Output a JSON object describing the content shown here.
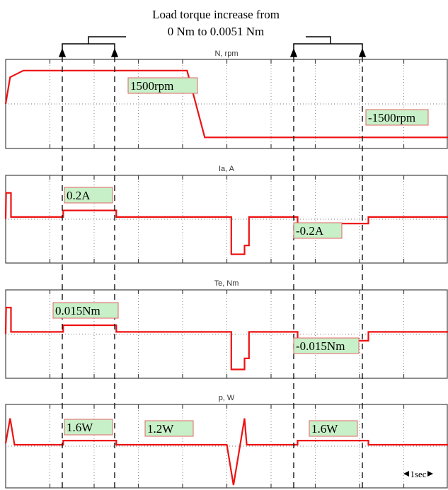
{
  "annotation": {
    "line1": "Load torque increase from",
    "line2": "0 Nm to 0.0051 Nm"
  },
  "time_scale_label": "1sec",
  "colors": {
    "trace": "#ee1111",
    "label_bg": "#c8f0c8",
    "label_border": "#e06666",
    "grid": "#444444"
  },
  "chart_data": [
    {
      "type": "line",
      "title": "N, rpm",
      "series": [
        {
          "x": [
            0.0,
            0.1,
            0.4,
            3.0,
            4.1,
            4.5,
            8.1,
            10.0
          ],
          "y": [
            0,
            1200,
            1500,
            1500,
            1500,
            -1500,
            -1500,
            -1500
          ]
        }
      ],
      "labels": [
        "1500rpm",
        "-1500rpm"
      ]
    },
    {
      "type": "line",
      "title": "Ia, A",
      "series": [
        {
          "x": [
            0.0,
            0.01,
            0.01,
            0.12,
            0.12,
            1.3,
            1.3,
            2.5,
            2.5,
            5.1,
            5.1,
            5.4,
            5.4,
            5.5,
            5.5,
            6.6,
            6.6,
            8.2,
            8.2,
            10.0
          ],
          "y": [
            0.0,
            0.6,
            0.6,
            0.6,
            0.05,
            0.05,
            0.2,
            0.2,
            0.05,
            0.05,
            -0.8,
            -0.8,
            -0.6,
            -0.6,
            0.05,
            0.05,
            -0.1,
            -0.1,
            0.05,
            0.05
          ]
        }
      ],
      "labels": [
        "0.2A",
        "-0.2A"
      ]
    },
    {
      "type": "line",
      "title": "Te, Nm",
      "series": [
        {
          "x": [
            0.0,
            0.01,
            0.01,
            0.12,
            0.12,
            1.3,
            1.3,
            2.5,
            2.5,
            5.1,
            5.1,
            5.4,
            5.4,
            5.5,
            5.5,
            6.6,
            6.6,
            8.2,
            8.2,
            10.0
          ],
          "y": [
            0.0,
            0.6,
            0.6,
            0.6,
            0.05,
            0.05,
            0.2,
            0.2,
            0.05,
            0.05,
            -0.8,
            -0.8,
            -0.55,
            -0.55,
            0.05,
            0.05,
            -0.15,
            -0.15,
            0.05,
            0.05
          ]
        }
      ],
      "labels": [
        "0.015Nm",
        "-0.015Nm"
      ]
    },
    {
      "type": "line",
      "title": "p, W",
      "series": [
        {
          "x": [
            0.0,
            0.1,
            0.2,
            0.2,
            1.3,
            1.3,
            2.5,
            2.5,
            5.0,
            5.15,
            5.15,
            5.4,
            5.45,
            6.6,
            6.6,
            8.2,
            8.2,
            10.0
          ],
          "y": [
            0.1,
            1.0,
            0.05,
            0.05,
            0.05,
            0.2,
            0.2,
            0.05,
            0.05,
            -1.4,
            -1.4,
            1.0,
            0.05,
            0.05,
            0.2,
            0.2,
            0.05,
            0.05
          ]
        }
      ],
      "labels": [
        "1.6W",
        "1.2W",
        "1.6W"
      ]
    }
  ]
}
